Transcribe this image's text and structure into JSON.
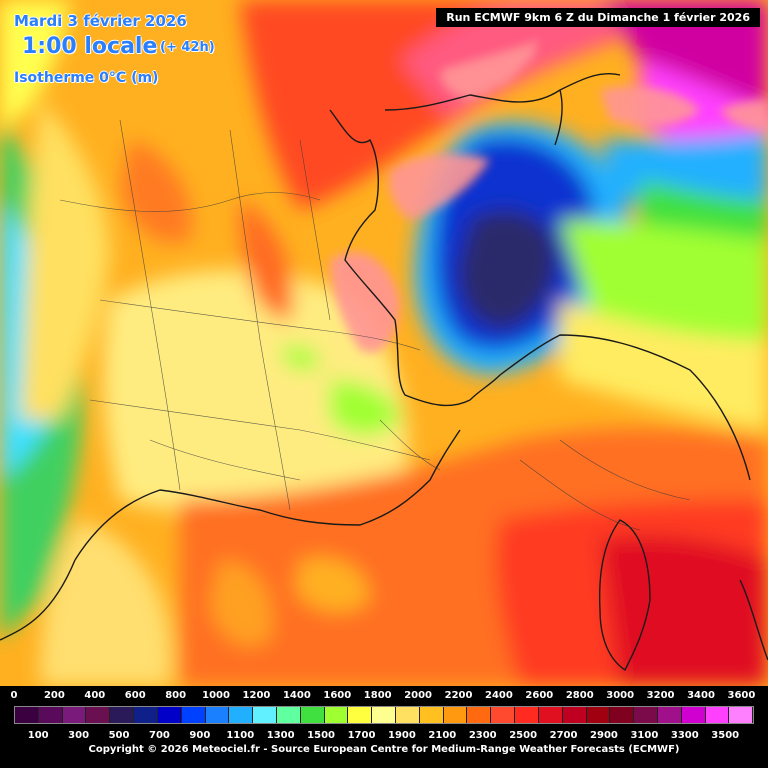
{
  "title": {
    "date": "Mardi 3 février 2026",
    "time": "1:00 locale",
    "lead": "(+ 42h)",
    "parameter": "Isotherme 0°C (m)"
  },
  "run_info": "Run ECMWF 9km 6 Z du Dimanche 1 février 2026",
  "legend": {
    "top_labels": [
      "0",
      "200",
      "400",
      "600",
      "800",
      "1000",
      "1200",
      "1400",
      "1600",
      "1800",
      "2000",
      "2200",
      "2400",
      "2600",
      "2800",
      "3000",
      "3200",
      "3400",
      "3600"
    ],
    "bottom_labels": [
      "100",
      "300",
      "500",
      "700",
      "900",
      "1100",
      "1300",
      "1500",
      "1700",
      "1900",
      "2100",
      "2300",
      "2500",
      "2700",
      "2900",
      "3100",
      "3300",
      "3500"
    ],
    "colors": [
      "#3a0040",
      "#5a0a5a",
      "#7a1a7a",
      "#6a1050",
      "#2a1a5a",
      "#10208a",
      "#0000c8",
      "#0040ff",
      "#1a80ff",
      "#20b0ff",
      "#60f0ff",
      "#60ffa0",
      "#40e040",
      "#a0ff30",
      "#ffff40",
      "#ffff90",
      "#ffe060",
      "#ffc020",
      "#ff9a10",
      "#ff6a10",
      "#ff4a30",
      "#ff2a20",
      "#e01020",
      "#c00020",
      "#a00010",
      "#800020",
      "#7a0a4a",
      "#a0108a",
      "#d000d0",
      "#ff40ff",
      "#ff80ff"
    ],
    "copyright": "Copyright © 2026 Meteociel.fr - Source European Centre for Medium-Range Weather Forecasts (ECMWF)"
  },
  "map": {
    "region": "France / Alpes / Corse",
    "field_colors": {
      "low_cold": "#1020a0",
      "very_low": "#2a2a6a",
      "mid": "#ffd040",
      "high": "#ff6a20",
      "very_high": "#e01020",
      "west_green": "#40d060",
      "west_cyan": "#40e0ff"
    }
  }
}
